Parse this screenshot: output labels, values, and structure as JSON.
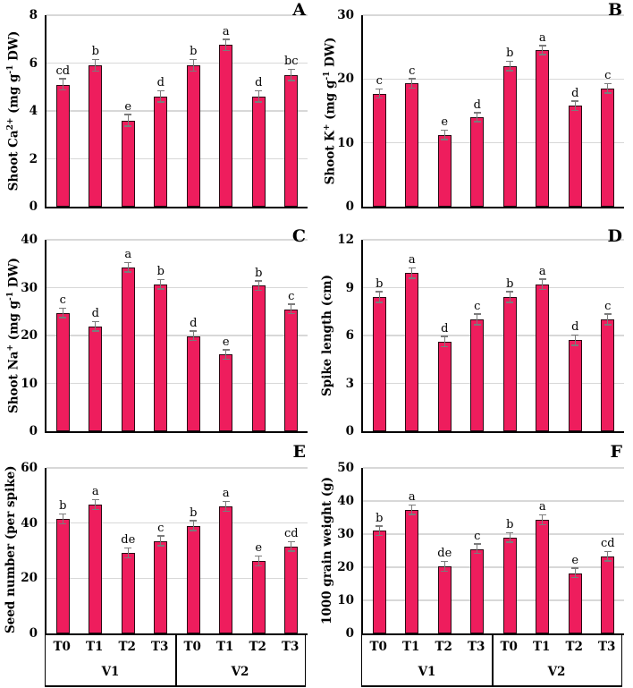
{
  "figure": {
    "bar_fill": "#EE1D5D",
    "bar_border": "#2A0A14",
    "error_color": "#7b7b7b",
    "grid_color": "#d8d8d8",
    "axis_color": "#000000",
    "background": "#ffffff"
  },
  "chart_data": [
    {
      "type": "bar",
      "panel": "A",
      "ylabel": "Shoot Ca2+ (mg g-1 DW)",
      "ylabel_segments": [
        {
          "t": "Shoot Ca"
        },
        {
          "sup": "2+"
        },
        {
          "t": " (mg g"
        },
        {
          "sup": "-1"
        },
        {
          "t": " DW)"
        }
      ],
      "ylim": [
        0,
        8
      ],
      "yticks": [
        0,
        2,
        4,
        6,
        8
      ],
      "categories": [
        "T0",
        "T1",
        "T2",
        "T3",
        "T0",
        "T1",
        "T2",
        "T3"
      ],
      "groups": [
        "V1",
        "V2"
      ],
      "values": [
        5.1,
        5.9,
        3.6,
        4.6,
        5.9,
        6.75,
        4.6,
        5.5
      ],
      "error": 0.22,
      "sig_letters": [
        "cd",
        "b",
        "e",
        "d",
        "b",
        "a",
        "d",
        "bc"
      ],
      "grid": true,
      "show_x_axis": false
    },
    {
      "type": "bar",
      "panel": "B",
      "ylabel": "Shoot K+ (mg g-1 DW)",
      "ylabel_segments": [
        {
          "t": "Shoot K"
        },
        {
          "sup": "+"
        },
        {
          "t": " (mg g"
        },
        {
          "sup": "-1"
        },
        {
          "t": " DW)"
        }
      ],
      "ylim": [
        0,
        30
      ],
      "yticks": [
        0,
        10,
        20,
        30
      ],
      "categories": [
        "T0",
        "T1",
        "T2",
        "T3",
        "T0",
        "T1",
        "T2",
        "T3"
      ],
      "groups": [
        "V1",
        "V2"
      ],
      "values": [
        17.7,
        19.3,
        11.2,
        14.0,
        22.0,
        24.5,
        15.8,
        18.5
      ],
      "error": 0.65,
      "sig_letters": [
        "c",
        "c",
        "e",
        "d",
        "b",
        "a",
        "d",
        "c"
      ],
      "grid": true,
      "show_x_axis": false
    },
    {
      "type": "bar",
      "panel": "C",
      "ylabel": "Shoot Na+ (mg g-1 DW)",
      "ylabel_segments": [
        {
          "t": "Shoot Na"
        },
        {
          "sup": "+"
        },
        {
          "t": " (mg g"
        },
        {
          "sup": "-1"
        },
        {
          "t": " DW)"
        }
      ],
      "ylim": [
        0,
        40
      ],
      "yticks": [
        0,
        10,
        20,
        30,
        40
      ],
      "categories": [
        "T0",
        "T1",
        "T2",
        "T3",
        "T0",
        "T1",
        "T2",
        "T3"
      ],
      "groups": [
        "V1",
        "V2"
      ],
      "values": [
        24.7,
        21.9,
        34.2,
        30.7,
        19.9,
        16.0,
        30.4,
        25.5
      ],
      "error": 0.9,
      "sig_letters": [
        "c",
        "d",
        "a",
        "b",
        "d",
        "e",
        "b",
        "c"
      ],
      "grid": true,
      "show_x_axis": false
    },
    {
      "type": "bar",
      "panel": "D",
      "ylabel": "Spike length (cm)",
      "ylabel_segments": [
        {
          "t": "Spike length (cm)"
        }
      ],
      "ylim": [
        0,
        12
      ],
      "yticks": [
        0,
        3,
        6,
        9,
        12
      ],
      "categories": [
        "T0",
        "T1",
        "T2",
        "T3",
        "T0",
        "T1",
        "T2",
        "T3"
      ],
      "groups": [
        "V1",
        "V2"
      ],
      "values": [
        8.4,
        9.9,
        5.6,
        7.0,
        8.4,
        9.2,
        5.7,
        7.0
      ],
      "error": 0.3,
      "sig_letters": [
        "b",
        "a",
        "d",
        "c",
        "b",
        "a",
        "d",
        "c"
      ],
      "grid": true,
      "show_x_axis": false
    },
    {
      "type": "bar",
      "panel": "E",
      "ylabel": "Seed number (per spike)",
      "ylabel_segments": [
        {
          "t": "Seed number (per spike)"
        }
      ],
      "ylim": [
        0,
        60
      ],
      "yticks": [
        0,
        20,
        40,
        60
      ],
      "categories": [
        "T0",
        "T1",
        "T2",
        "T3",
        "T0",
        "T1",
        "T2",
        "T3"
      ],
      "groups": [
        "V1",
        "V2"
      ],
      "values": [
        41.5,
        46.7,
        29.2,
        33.5,
        39.0,
        46.0,
        26.2,
        31.5
      ],
      "error": 1.6,
      "sig_letters": [
        "b",
        "a",
        "de",
        "c",
        "b",
        "a",
        "e",
        "cd"
      ],
      "grid": true,
      "show_x_axis": true
    },
    {
      "type": "bar",
      "panel": "F",
      "ylabel": "1000 grain weight (g)",
      "ylabel_segments": [
        {
          "t": "1000 grain weight (g)"
        }
      ],
      "ylim": [
        0,
        50
      ],
      "yticks": [
        0,
        10,
        20,
        30,
        40,
        50
      ],
      "categories": [
        "T0",
        "T1",
        "T2",
        "T3",
        "T0",
        "T1",
        "T2",
        "T3"
      ],
      "groups": [
        "V1",
        "V2"
      ],
      "values": [
        31.0,
        37.3,
        20.2,
        25.5,
        29.0,
        34.3,
        18.2,
        23.3
      ],
      "error": 1.3,
      "sig_letters": [
        "b",
        "a",
        "de",
        "c",
        "b",
        "a",
        "e",
        "cd"
      ],
      "grid": true,
      "show_x_axis": true
    }
  ]
}
